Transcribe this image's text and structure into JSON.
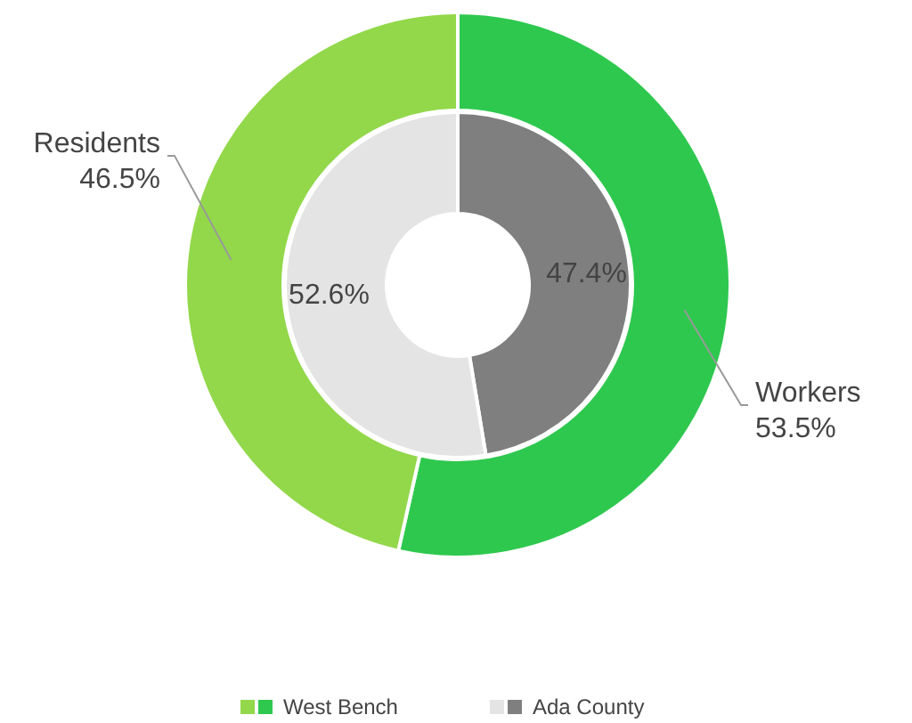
{
  "chart_data": {
    "type": "donut",
    "categories": [
      "Workers",
      "Residents"
    ],
    "series": [
      {
        "name": "West Bench",
        "values": [
          53.5,
          46.5
        ],
        "value_labels": [
          "53.5%",
          "46.5%"
        ],
        "colors": [
          "#2ec84e",
          "#92d84a"
        ]
      },
      {
        "name": "Ada County",
        "values": [
          47.4,
          52.6
        ],
        "value_labels": [
          "47.4%",
          "52.6%"
        ],
        "colors": [
          "#7f7f7f",
          "#e4e4e4"
        ]
      }
    ],
    "legend": "bottom"
  }
}
